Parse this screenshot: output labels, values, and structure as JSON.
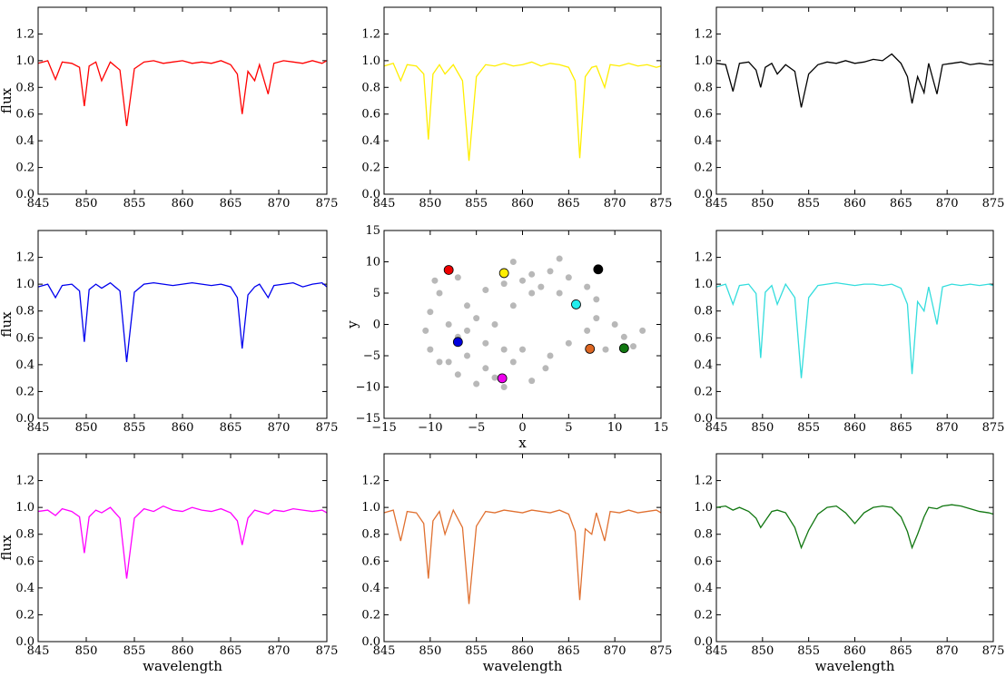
{
  "chart_data": [
    {
      "type": "line",
      "ylabel": "flux",
      "color": "#ff0000",
      "x": [
        845,
        846,
        846.8,
        847.5,
        848.5,
        849.3,
        849.8,
        850.3,
        851,
        851.6,
        852.5,
        853.5,
        854.2,
        855,
        856,
        857,
        858,
        859,
        860,
        861,
        862,
        863,
        864,
        865,
        865.7,
        866.2,
        866.8,
        867.5,
        868,
        868.9,
        869.5,
        870.5,
        871.5,
        872.5,
        873.5,
        874.5,
        875
      ],
      "values": [
        0.98,
        1.0,
        0.86,
        0.99,
        0.98,
        0.95,
        0.66,
        0.96,
        0.99,
        0.85,
        0.99,
        0.93,
        0.51,
        0.94,
        0.99,
        1.0,
        0.98,
        0.99,
        1.0,
        0.98,
        0.99,
        0.98,
        1.0,
        0.97,
        0.9,
        0.6,
        0.92,
        0.85,
        0.97,
        0.75,
        0.98,
        1.0,
        0.99,
        0.98,
        1.0,
        0.98,
        1.0
      ],
      "xlim": [
        845,
        875
      ],
      "xticks": [
        845,
        850,
        855,
        860,
        865,
        870,
        875
      ],
      "ylim": [
        0,
        1.4
      ],
      "yticks": [
        {
          "value": 0,
          "label": "0.0"
        },
        {
          "value": 0.2,
          "label": "0.2"
        },
        {
          "value": 0.4,
          "label": "0.4"
        },
        {
          "value": 0.6,
          "label": "0.6"
        },
        {
          "value": 0.8,
          "label": "0.8"
        },
        {
          "value": 1,
          "label": "1.0"
        },
        {
          "value": 1.2,
          "label": "1.2"
        }
      ]
    },
    {
      "type": "line",
      "color": "#ffee00",
      "x": [
        845,
        846,
        846.8,
        847.5,
        848.5,
        849.3,
        849.8,
        850.3,
        851,
        851.6,
        852.5,
        853.5,
        854.2,
        855,
        856,
        857,
        858,
        859,
        860,
        861,
        862,
        863,
        864,
        865,
        865.7,
        866.2,
        866.8,
        867.5,
        868,
        868.9,
        869.5,
        870.5,
        871.5,
        872.5,
        873.5,
        874.5,
        875
      ],
      "values": [
        0.96,
        0.98,
        0.85,
        0.97,
        0.96,
        0.9,
        0.41,
        0.9,
        0.97,
        0.9,
        0.97,
        0.85,
        0.25,
        0.88,
        0.97,
        0.96,
        0.98,
        0.96,
        0.97,
        0.99,
        0.96,
        0.98,
        0.97,
        0.95,
        0.85,
        0.27,
        0.88,
        0.95,
        0.96,
        0.8,
        0.97,
        0.96,
        0.98,
        0.96,
        0.97,
        0.95,
        0.96
      ],
      "xlim": [
        845,
        875
      ],
      "xticks": [
        845,
        850,
        855,
        860,
        865,
        870,
        875
      ],
      "ylim": [
        0,
        1.4
      ],
      "yticks": [
        {
          "value": 0,
          "label": "0.0"
        },
        {
          "value": 0.2,
          "label": "0.2"
        },
        {
          "value": 0.4,
          "label": "0.4"
        },
        {
          "value": 0.6,
          "label": "0.6"
        },
        {
          "value": 0.8,
          "label": "0.8"
        },
        {
          "value": 1,
          "label": "1.0"
        },
        {
          "value": 1.2,
          "label": "1.2"
        }
      ]
    },
    {
      "type": "line",
      "color": "#000000",
      "x": [
        845,
        846,
        846.8,
        847.5,
        848.5,
        849.3,
        849.8,
        850.3,
        851,
        851.6,
        852.5,
        853.5,
        854.2,
        855,
        856,
        857,
        858,
        859,
        860,
        861,
        862,
        863,
        864,
        865,
        865.7,
        866.2,
        866.8,
        867.5,
        868,
        868.9,
        869.5,
        870.5,
        871.5,
        872.5,
        873.5,
        874.5,
        875
      ],
      "values": [
        0.98,
        0.97,
        0.77,
        0.98,
        0.99,
        0.93,
        0.8,
        0.95,
        0.98,
        0.9,
        0.97,
        0.92,
        0.65,
        0.9,
        0.97,
        0.99,
        0.98,
        1.0,
        0.98,
        0.99,
        1.01,
        1.0,
        1.05,
        0.98,
        0.88,
        0.68,
        0.88,
        0.76,
        0.98,
        0.75,
        0.97,
        0.98,
        0.99,
        0.97,
        0.98,
        0.97,
        0.97
      ],
      "xlim": [
        845,
        875
      ],
      "xticks": [
        845,
        850,
        855,
        860,
        865,
        870,
        875
      ],
      "ylim": [
        0,
        1.4
      ],
      "yticks": [
        {
          "value": 0,
          "label": "0.0"
        },
        {
          "value": 0.2,
          "label": "0.2"
        },
        {
          "value": 0.4,
          "label": "0.4"
        },
        {
          "value": 0.6,
          "label": "0.6"
        },
        {
          "value": 0.8,
          "label": "0.8"
        },
        {
          "value": 1,
          "label": "1.0"
        },
        {
          "value": 1.2,
          "label": "1.2"
        }
      ]
    },
    {
      "type": "line",
      "ylabel": "flux",
      "color": "#0000ee",
      "x": [
        845,
        846,
        846.8,
        847.5,
        848.5,
        849.3,
        849.8,
        850.3,
        851,
        851.6,
        852.5,
        853.5,
        854.2,
        855,
        856,
        857,
        858,
        859,
        860,
        861,
        862,
        863,
        864,
        865,
        865.7,
        866.2,
        866.8,
        867.5,
        868,
        868.9,
        869.5,
        870.5,
        871.5,
        872.5,
        873.5,
        874.5,
        875
      ],
      "values": [
        0.98,
        1.0,
        0.9,
        0.99,
        1.0,
        0.95,
        0.57,
        0.96,
        1.0,
        0.97,
        1.01,
        0.95,
        0.42,
        0.94,
        1.0,
        1.01,
        1.0,
        0.99,
        1.0,
        1.01,
        1.0,
        0.99,
        1.0,
        0.98,
        0.9,
        0.52,
        0.92,
        0.98,
        1.0,
        0.9,
        0.99,
        1.0,
        1.01,
        0.98,
        1.0,
        1.01,
        0.98
      ],
      "xlim": [
        845,
        875
      ],
      "xticks": [
        845,
        850,
        855,
        860,
        865,
        870,
        875
      ],
      "ylim": [
        0,
        1.4
      ],
      "yticks": [
        {
          "value": 0,
          "label": "0.0"
        },
        {
          "value": 0.2,
          "label": "0.2"
        },
        {
          "value": 0.4,
          "label": "0.4"
        },
        {
          "value": 0.6,
          "label": "0.6"
        },
        {
          "value": 0.8,
          "label": "0.8"
        },
        {
          "value": 1,
          "label": "1.0"
        },
        {
          "value": 1.2,
          "label": "1.2"
        }
      ]
    },
    {
      "type": "scatter",
      "xlabel": "x",
      "ylabel": "y",
      "xlim": [
        -15,
        15
      ],
      "xticks": [
        {
          "value": -15,
          "label": "−15"
        },
        {
          "value": -10,
          "label": "−10"
        },
        {
          "value": -5,
          "label": "−5"
        },
        0,
        5,
        10,
        15
      ],
      "ylim": [
        -15,
        15
      ],
      "yticks": [
        {
          "value": -15,
          "label": "−15"
        },
        {
          "value": -10,
          "label": "−10"
        },
        {
          "value": -5,
          "label": "−5"
        },
        0,
        5,
        10,
        15
      ],
      "series": [
        {
          "color": "#888888",
          "x": [
            -9,
            -10,
            -10.5,
            -10,
            -9,
            -7,
            -5,
            -2,
            1,
            2.5,
            -8,
            -6,
            -4,
            -2,
            1,
            3,
            5,
            7,
            8,
            8,
            7,
            5,
            3,
            -6,
            -4,
            -3,
            -5,
            -7,
            -8,
            -1,
            0,
            -2,
            -1,
            1,
            4,
            6,
            10,
            11,
            12,
            13,
            9,
            -9.5,
            -7,
            -1,
            4,
            -4,
            -3,
            0,
            2,
            -6
          ],
          "y": [
            5,
            2,
            -1,
            -4,
            -6,
            -8,
            -9.5,
            -10,
            -9,
            -7,
            0,
            3,
            5.5,
            6.5,
            8,
            8.5,
            7.5,
            6,
            4,
            1,
            -1,
            -3,
            -5,
            -5,
            -3,
            0,
            1,
            -2,
            -6,
            -6,
            -4,
            -4,
            3,
            5,
            5,
            3,
            0,
            -2,
            -3.5,
            -1,
            -4,
            7,
            7.5,
            10,
            10.5,
            -7,
            -8.5,
            7,
            6,
            -1
          ]
        },
        {
          "colors": [
            "#ee0000",
            "#ffee00",
            "#000000",
            "#22eeee",
            "#0000dd",
            "#dd6622",
            "#117711",
            "#ee00ee"
          ],
          "x": [
            -8,
            -2,
            8.2,
            5.8,
            -7,
            7.3,
            11,
            -2.2
          ],
          "y": [
            8.7,
            8.2,
            8.8,
            3.2,
            -2.8,
            -3.9,
            -3.8,
            -8.6
          ]
        }
      ]
    },
    {
      "type": "line",
      "color": "#33dddd",
      "x": [
        845,
        846,
        846.8,
        847.5,
        848.5,
        849.3,
        849.8,
        850.3,
        851,
        851.6,
        852.5,
        853.5,
        854.2,
        855,
        856,
        857,
        858,
        859,
        860,
        861,
        862,
        863,
        864,
        865,
        865.7,
        866.2,
        866.8,
        867.5,
        868,
        868.9,
        869.5,
        870.5,
        871.5,
        872.5,
        873.5,
        874.5,
        875
      ],
      "values": [
        0.98,
        1.0,
        0.85,
        0.99,
        1.0,
        0.93,
        0.45,
        0.94,
        0.99,
        0.85,
        1.0,
        0.9,
        0.3,
        0.9,
        0.99,
        1.0,
        1.01,
        1.0,
        0.99,
        1.0,
        1.0,
        0.99,
        1.0,
        0.97,
        0.85,
        0.33,
        0.87,
        0.8,
        0.98,
        0.7,
        0.98,
        1.0,
        0.99,
        1.0,
        0.99,
        1.0,
        0.99
      ],
      "xlim": [
        845,
        875
      ],
      "xticks": [
        845,
        850,
        855,
        860,
        865,
        870,
        875
      ],
      "ylim": [
        0,
        1.4
      ],
      "yticks": [
        {
          "value": 0,
          "label": "0.0"
        },
        {
          "value": 0.2,
          "label": "0.2"
        },
        {
          "value": 0.4,
          "label": "0.4"
        },
        {
          "value": 0.6,
          "label": "0.6"
        },
        {
          "value": 0.8,
          "label": "0.8"
        },
        {
          "value": 1,
          "label": "1.0"
        },
        {
          "value": 1.2,
          "label": "1.2"
        }
      ]
    },
    {
      "type": "line",
      "ylabel": "flux",
      "xlabel": "wavelength",
      "color": "#ff00ff",
      "x": [
        845,
        846,
        846.8,
        847.5,
        848.5,
        849.3,
        849.8,
        850.3,
        851,
        851.6,
        852.5,
        853.5,
        854.2,
        855,
        856,
        857,
        858,
        859,
        860,
        861,
        862,
        863,
        864,
        865,
        865.7,
        866.2,
        866.8,
        867.5,
        868,
        868.9,
        869.5,
        870.5,
        871.5,
        872.5,
        873.5,
        874.5,
        875
      ],
      "values": [
        0.97,
        0.98,
        0.94,
        0.99,
        0.97,
        0.93,
        0.66,
        0.93,
        0.98,
        0.96,
        1.0,
        0.92,
        0.47,
        0.92,
        0.99,
        0.97,
        1.01,
        0.98,
        0.97,
        1.0,
        0.98,
        0.97,
        0.99,
        0.96,
        0.9,
        0.72,
        0.92,
        0.98,
        0.97,
        0.95,
        0.98,
        0.97,
        0.99,
        0.98,
        0.97,
        0.98,
        0.96
      ],
      "xlim": [
        845,
        875
      ],
      "xticks": [
        845,
        850,
        855,
        860,
        865,
        870,
        875
      ],
      "ylim": [
        0,
        1.4
      ],
      "yticks": [
        {
          "value": 0,
          "label": "0.0"
        },
        {
          "value": 0.2,
          "label": "0.2"
        },
        {
          "value": 0.4,
          "label": "0.4"
        },
        {
          "value": 0.6,
          "label": "0.6"
        },
        {
          "value": 0.8,
          "label": "0.8"
        },
        {
          "value": 1,
          "label": "1.0"
        },
        {
          "value": 1.2,
          "label": "1.2"
        }
      ]
    },
    {
      "type": "line",
      "xlabel": "wavelength",
      "color": "#e07030",
      "x": [
        845,
        846,
        846.8,
        847.5,
        848.5,
        849.3,
        849.8,
        850.3,
        851,
        851.6,
        852.5,
        853.5,
        854.2,
        855,
        856,
        857,
        858,
        859,
        860,
        861,
        862,
        863,
        864,
        865,
        865.7,
        866.2,
        866.8,
        867.5,
        868,
        868.9,
        869.5,
        870.5,
        871.5,
        872.5,
        873.5,
        874.5,
        875
      ],
      "values": [
        0.96,
        0.98,
        0.75,
        0.97,
        0.96,
        0.88,
        0.47,
        0.9,
        0.97,
        0.8,
        0.98,
        0.85,
        0.28,
        0.86,
        0.97,
        0.96,
        0.98,
        0.97,
        0.96,
        0.98,
        0.97,
        0.96,
        0.98,
        0.95,
        0.82,
        0.31,
        0.84,
        0.8,
        0.96,
        0.75,
        0.97,
        0.96,
        0.98,
        0.96,
        0.97,
        0.98,
        0.96
      ],
      "xlim": [
        845,
        875
      ],
      "xticks": [
        845,
        850,
        855,
        860,
        865,
        870,
        875
      ],
      "ylim": [
        0,
        1.4
      ],
      "yticks": [
        {
          "value": 0,
          "label": "0.0"
        },
        {
          "value": 0.2,
          "label": "0.2"
        },
        {
          "value": 0.4,
          "label": "0.4"
        },
        {
          "value": 0.6,
          "label": "0.6"
        },
        {
          "value": 0.8,
          "label": "0.8"
        },
        {
          "value": 1,
          "label": "1.0"
        },
        {
          "value": 1.2,
          "label": "1.2"
        }
      ]
    },
    {
      "type": "line",
      "xlabel": "wavelength",
      "color": "#117711",
      "x": [
        845,
        846,
        846.8,
        847.5,
        848.5,
        849.3,
        849.8,
        850.3,
        851,
        851.6,
        852.5,
        853.5,
        854.2,
        855,
        856,
        857,
        858,
        859,
        860,
        861,
        862,
        863,
        864,
        865,
        865.7,
        866.2,
        866.8,
        867.5,
        868,
        868.9,
        869.5,
        870.5,
        871.5,
        872.5,
        873.5,
        874.5,
        875
      ],
      "values": [
        1.0,
        1.01,
        0.98,
        1.0,
        0.97,
        0.92,
        0.85,
        0.9,
        0.97,
        0.98,
        0.96,
        0.85,
        0.7,
        0.83,
        0.95,
        1.0,
        1.01,
        0.96,
        0.88,
        0.96,
        1.0,
        1.01,
        1.0,
        0.93,
        0.82,
        0.7,
        0.8,
        0.93,
        1.0,
        0.99,
        1.01,
        1.02,
        1.01,
        0.99,
        0.97,
        0.96,
        0.95
      ],
      "xlim": [
        845,
        875
      ],
      "xticks": [
        845,
        850,
        855,
        860,
        865,
        870,
        875
      ],
      "ylim": [
        0,
        1.4
      ],
      "yticks": [
        {
          "value": 0,
          "label": "0.0"
        },
        {
          "value": 0.2,
          "label": "0.2"
        },
        {
          "value": 0.4,
          "label": "0.4"
        },
        {
          "value": 0.6,
          "label": "0.6"
        },
        {
          "value": 0.8,
          "label": "0.8"
        },
        {
          "value": 1,
          "label": "1.0"
        },
        {
          "value": 1.2,
          "label": "1.2"
        }
      ]
    }
  ]
}
